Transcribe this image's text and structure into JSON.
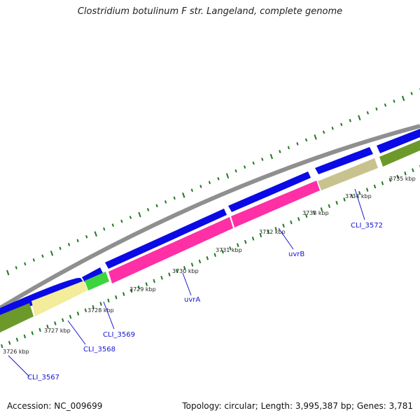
{
  "title": "Clostridium botulinum F str. Langeland, complete genome",
  "footer": {
    "accession": "Accession: NC_009699",
    "summary": "Topology: circular; Length: 3,995,387 bp; Genes: 3,781"
  },
  "colors": {
    "backbone": "#8f8f8f",
    "forward_cds": "#0a0ae6",
    "repair_gene": "#ff2fa5",
    "light_green_gene": "#3ed43e",
    "pale_yellow_gene": "#f2ec9b",
    "olive_gene": "#6b9a2a",
    "tan_gene": "#c8c28e",
    "tick": "#1f7a1f",
    "label_link": "#1414d2"
  },
  "scale": {
    "unit": "kbp",
    "ticks": [
      {
        "kbp": 3726,
        "label": "3726 kbp"
      },
      {
        "kbp": 3727,
        "label": "3727 kbp"
      },
      {
        "kbp": 3728,
        "label": "3728 kbp"
      },
      {
        "kbp": 3729,
        "label": "3729 kbp"
      },
      {
        "kbp": 3730,
        "label": "3730 kbp"
      },
      {
        "kbp": 3731,
        "label": "3731 kbp"
      },
      {
        "kbp": 3732,
        "label": "3732 kbp"
      },
      {
        "kbp": 3733,
        "label": "3733 kbp"
      },
      {
        "kbp": 3734,
        "label": "3734 kbp"
      },
      {
        "kbp": 3735,
        "label": "3735 kbp"
      }
    ]
  },
  "gene_labels": [
    {
      "name": "CLI_3567",
      "color": "#1414d2"
    },
    {
      "name": "CLI_3568",
      "color": "#1414d2"
    },
    {
      "name": "CLI_3569",
      "color": "#1414d2"
    },
    {
      "name": "uvrA",
      "color": "#1414d2"
    },
    {
      "name": "uvrB",
      "color": "#1414d2"
    },
    {
      "name": "CLI_3572",
      "color": "#1414d2"
    }
  ]
}
